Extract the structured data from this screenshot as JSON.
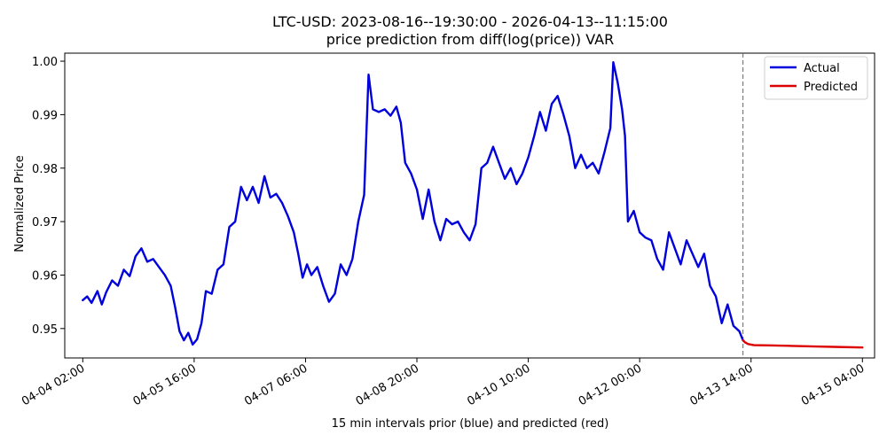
{
  "chart_data": {
    "type": "line",
    "title": "LTC-USD: 2023-08-16--19:30:00 - 2026-04-13--11:15:00",
    "subtitle": "price prediction from diff(log(price)) VAR",
    "xlabel": "15 min intervals prior (blue) and predicted (red)",
    "ylabel": "Normalized Price",
    "ylim": [
      0.9445,
      1.0015
    ],
    "xlim": [
      "2026-04-03 19:51",
      "2026-04-15 08:09"
    ],
    "grid": false,
    "legend_position": "upper-right",
    "x_ticks": [
      "04-04 02:00",
      "04-05 16:00",
      "04-07 06:00",
      "04-08 20:00",
      "04-10 10:00",
      "04-12 00:00",
      "04-13 14:00",
      "04-15 04:00"
    ],
    "y_ticks": [
      0.95,
      0.96,
      0.97,
      0.98,
      0.99,
      1.0
    ],
    "y_tick_labels": [
      "0.95",
      "0.96",
      "0.97",
      "0.98",
      "0.99",
      "1.00"
    ],
    "forecast_start": "2026-04-13 11:15",
    "series": [
      {
        "name": "Actual",
        "color": "#0000dd",
        "points": [
          [
            "2026-04-04 02:00",
            0.9553
          ],
          [
            "2026-04-04 03:30",
            0.956
          ],
          [
            "2026-04-04 05:00",
            0.9548
          ],
          [
            "2026-04-04 07:00",
            0.957
          ],
          [
            "2026-04-04 08:30",
            0.9545
          ],
          [
            "2026-04-04 10:00",
            0.9568
          ],
          [
            "2026-04-04 12:00",
            0.959
          ],
          [
            "2026-04-04 14:00",
            0.958
          ],
          [
            "2026-04-04 16:00",
            0.961
          ],
          [
            "2026-04-04 18:00",
            0.9598
          ],
          [
            "2026-04-04 20:00",
            0.9635
          ],
          [
            "2026-04-04 22:00",
            0.965
          ],
          [
            "2026-04-05 00:00",
            0.9625
          ],
          [
            "2026-04-05 02:00",
            0.963
          ],
          [
            "2026-04-05 04:00",
            0.9615
          ],
          [
            "2026-04-05 06:00",
            0.96
          ],
          [
            "2026-04-05 08:00",
            0.958
          ],
          [
            "2026-04-05 09:30",
            0.954
          ],
          [
            "2026-04-05 11:00",
            0.9495
          ],
          [
            "2026-04-05 12:30",
            0.9478
          ],
          [
            "2026-04-05 14:00",
            0.9492
          ],
          [
            "2026-04-05 15:30",
            0.947
          ],
          [
            "2026-04-05 17:00",
            0.948
          ],
          [
            "2026-04-05 18:30",
            0.951
          ],
          [
            "2026-04-05 20:00",
            0.957
          ],
          [
            "2026-04-05 22:00",
            0.9565
          ],
          [
            "2026-04-06 00:00",
            0.961
          ],
          [
            "2026-04-06 02:00",
            0.962
          ],
          [
            "2026-04-06 04:00",
            0.969
          ],
          [
            "2026-04-06 06:00",
            0.97
          ],
          [
            "2026-04-06 08:00",
            0.9765
          ],
          [
            "2026-04-06 10:00",
            0.974
          ],
          [
            "2026-04-06 12:00",
            0.9765
          ],
          [
            "2026-04-06 14:00",
            0.9735
          ],
          [
            "2026-04-06 16:00",
            0.9785
          ],
          [
            "2026-04-06 18:00",
            0.9745
          ],
          [
            "2026-04-06 20:00",
            0.9752
          ],
          [
            "2026-04-06 22:00",
            0.9735
          ],
          [
            "2026-04-07 00:00",
            0.971
          ],
          [
            "2026-04-07 02:00",
            0.968
          ],
          [
            "2026-04-07 03:30",
            0.964
          ],
          [
            "2026-04-07 05:00",
            0.9595
          ],
          [
            "2026-04-07 06:30",
            0.962
          ],
          [
            "2026-04-07 08:00",
            0.96
          ],
          [
            "2026-04-07 10:00",
            0.9615
          ],
          [
            "2026-04-07 12:00",
            0.958
          ],
          [
            "2026-04-07 14:00",
            0.955
          ],
          [
            "2026-04-07 16:00",
            0.9565
          ],
          [
            "2026-04-07 18:00",
            0.962
          ],
          [
            "2026-04-07 20:00",
            0.96
          ],
          [
            "2026-04-07 22:00",
            0.963
          ],
          [
            "2026-04-08 00:00",
            0.97
          ],
          [
            "2026-04-08 02:00",
            0.975
          ],
          [
            "2026-04-08 03:30",
            0.9975
          ],
          [
            "2026-04-08 05:00",
            0.991
          ],
          [
            "2026-04-08 07:00",
            0.9905
          ],
          [
            "2026-04-08 09:00",
            0.991
          ],
          [
            "2026-04-08 11:00",
            0.9898
          ],
          [
            "2026-04-08 13:00",
            0.9915
          ],
          [
            "2026-04-08 14:30",
            0.9885
          ],
          [
            "2026-04-08 16:00",
            0.981
          ],
          [
            "2026-04-08 18:00",
            0.979
          ],
          [
            "2026-04-08 20:00",
            0.976
          ],
          [
            "2026-04-08 22:00",
            0.9705
          ],
          [
            "2026-04-09 00:00",
            0.976
          ],
          [
            "2026-04-09 02:00",
            0.97
          ],
          [
            "2026-04-09 04:00",
            0.9665
          ],
          [
            "2026-04-09 06:00",
            0.9705
          ],
          [
            "2026-04-09 08:00",
            0.9695
          ],
          [
            "2026-04-09 10:00",
            0.97
          ],
          [
            "2026-04-09 12:00",
            0.968
          ],
          [
            "2026-04-09 14:00",
            0.9665
          ],
          [
            "2026-04-09 16:00",
            0.9695
          ],
          [
            "2026-04-09 18:00",
            0.98
          ],
          [
            "2026-04-09 20:00",
            0.981
          ],
          [
            "2026-04-09 22:00",
            0.984
          ],
          [
            "2026-04-10 00:00",
            0.981
          ],
          [
            "2026-04-10 02:00",
            0.978
          ],
          [
            "2026-04-10 04:00",
            0.98
          ],
          [
            "2026-04-10 06:00",
            0.977
          ],
          [
            "2026-04-10 08:00",
            0.979
          ],
          [
            "2026-04-10 10:00",
            0.982
          ],
          [
            "2026-04-10 12:00",
            0.986
          ],
          [
            "2026-04-10 14:00",
            0.9905
          ],
          [
            "2026-04-10 16:00",
            0.987
          ],
          [
            "2026-04-10 18:00",
            0.992
          ],
          [
            "2026-04-10 20:00",
            0.9935
          ],
          [
            "2026-04-10 22:00",
            0.99
          ],
          [
            "2026-04-11 00:00",
            0.986
          ],
          [
            "2026-04-11 02:00",
            0.98
          ],
          [
            "2026-04-11 04:00",
            0.9825
          ],
          [
            "2026-04-11 06:00",
            0.98
          ],
          [
            "2026-04-11 08:00",
            0.981
          ],
          [
            "2026-04-11 10:00",
            0.979
          ],
          [
            "2026-04-11 12:00",
            0.983
          ],
          [
            "2026-04-11 14:00",
            0.9875
          ],
          [
            "2026-04-11 15:00",
            0.9998
          ],
          [
            "2026-04-11 16:30",
            0.996
          ],
          [
            "2026-04-11 18:00",
            0.991
          ],
          [
            "2026-04-11 19:00",
            0.986
          ],
          [
            "2026-04-11 20:00",
            0.97
          ],
          [
            "2026-04-11 22:00",
            0.972
          ],
          [
            "2026-04-12 00:00",
            0.968
          ],
          [
            "2026-04-12 02:00",
            0.967
          ],
          [
            "2026-04-12 04:00",
            0.9665
          ],
          [
            "2026-04-12 06:00",
            0.963
          ],
          [
            "2026-04-12 08:00",
            0.961
          ],
          [
            "2026-04-12 10:00",
            0.968
          ],
          [
            "2026-04-12 12:00",
            0.965
          ],
          [
            "2026-04-12 14:00",
            0.962
          ],
          [
            "2026-04-12 16:00",
            0.9665
          ],
          [
            "2026-04-12 18:00",
            0.964
          ],
          [
            "2026-04-12 20:00",
            0.9615
          ],
          [
            "2026-04-12 22:00",
            0.964
          ],
          [
            "2026-04-13 00:00",
            0.958
          ],
          [
            "2026-04-13 02:00",
            0.956
          ],
          [
            "2026-04-13 04:00",
            0.951
          ],
          [
            "2026-04-13 06:00",
            0.9545
          ],
          [
            "2026-04-13 08:00",
            0.9505
          ],
          [
            "2026-04-13 10:00",
            0.9495
          ],
          [
            "2026-04-13 11:15",
            0.9478
          ]
        ]
      },
      {
        "name": "Predicted",
        "color": "#dd0000",
        "points": [
          [
            "2026-04-13 11:15",
            0.9478
          ],
          [
            "2026-04-13 12:00",
            0.9474
          ],
          [
            "2026-04-13 13:00",
            0.9471
          ],
          [
            "2026-04-13 15:00",
            0.9469
          ],
          [
            "2026-04-13 20:00",
            0.94685
          ],
          [
            "2026-04-14 04:00",
            0.94675
          ],
          [
            "2026-04-14 12:00",
            0.94665
          ],
          [
            "2026-04-14 20:00",
            0.94655
          ],
          [
            "2026-04-15 04:00",
            0.94645
          ]
        ]
      }
    ]
  }
}
